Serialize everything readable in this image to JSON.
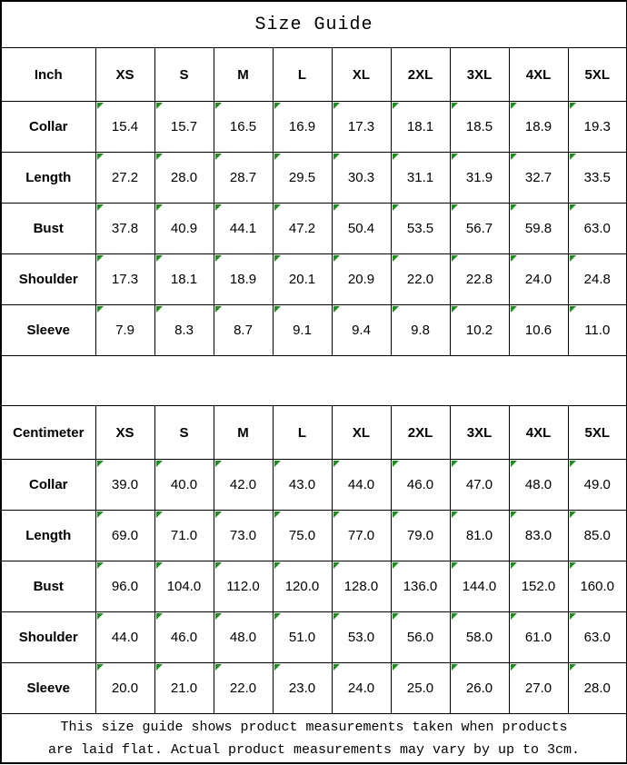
{
  "title": "Size Guide",
  "colors": {
    "flag_triangle": "#169416",
    "grid_line": "#000000",
    "background": "#ffffff",
    "text": "#000000"
  },
  "sizes": [
    "XS",
    "S",
    "M",
    "L",
    "XL",
    "2XL",
    "3XL",
    "4XL",
    "5XL"
  ],
  "tables": [
    {
      "unit_label": "Inch",
      "rows": [
        {
          "label": "Collar",
          "values": [
            "15.4",
            "15.7",
            "16.5",
            "16.9",
            "17.3",
            "18.1",
            "18.5",
            "18.9",
            "19.3"
          ]
        },
        {
          "label": "Length",
          "values": [
            "27.2",
            "28.0",
            "28.7",
            "29.5",
            "30.3",
            "31.1",
            "31.9",
            "32.7",
            "33.5"
          ]
        },
        {
          "label": "Bust",
          "values": [
            "37.8",
            "40.9",
            "44.1",
            "47.2",
            "50.4",
            "53.5",
            "56.7",
            "59.8",
            "63.0"
          ]
        },
        {
          "label": "Shoulder",
          "values": [
            "17.3",
            "18.1",
            "18.9",
            "20.1",
            "20.9",
            "22.0",
            "22.8",
            "24.0",
            "24.8"
          ]
        },
        {
          "label": "Sleeve",
          "values": [
            "7.9",
            "8.3",
            "8.7",
            "9.1",
            "9.4",
            "9.8",
            "10.2",
            "10.6",
            "11.0"
          ]
        }
      ]
    },
    {
      "unit_label": "Centimeter",
      "rows": [
        {
          "label": "Collar",
          "values": [
            "39.0",
            "40.0",
            "42.0",
            "43.0",
            "44.0",
            "46.0",
            "47.0",
            "48.0",
            "49.0"
          ]
        },
        {
          "label": "Length",
          "values": [
            "69.0",
            "71.0",
            "73.0",
            "75.0",
            "77.0",
            "79.0",
            "81.0",
            "83.0",
            "85.0"
          ]
        },
        {
          "label": "Bust",
          "values": [
            "96.0",
            "104.0",
            "112.0",
            "120.0",
            "128.0",
            "136.0",
            "144.0",
            "152.0",
            "160.0"
          ]
        },
        {
          "label": "Shoulder",
          "values": [
            "44.0",
            "46.0",
            "48.0",
            "51.0",
            "53.0",
            "56.0",
            "58.0",
            "61.0",
            "63.0"
          ]
        },
        {
          "label": "Sleeve",
          "values": [
            "20.0",
            "21.0",
            "22.0",
            "23.0",
            "24.0",
            "25.0",
            "26.0",
            "27.0",
            "28.0"
          ]
        }
      ]
    }
  ],
  "footer_note_line1": "This size guide shows product measurements taken when products",
  "footer_note_line2": "are laid flat. Actual product measurements may vary by up to 3cm."
}
